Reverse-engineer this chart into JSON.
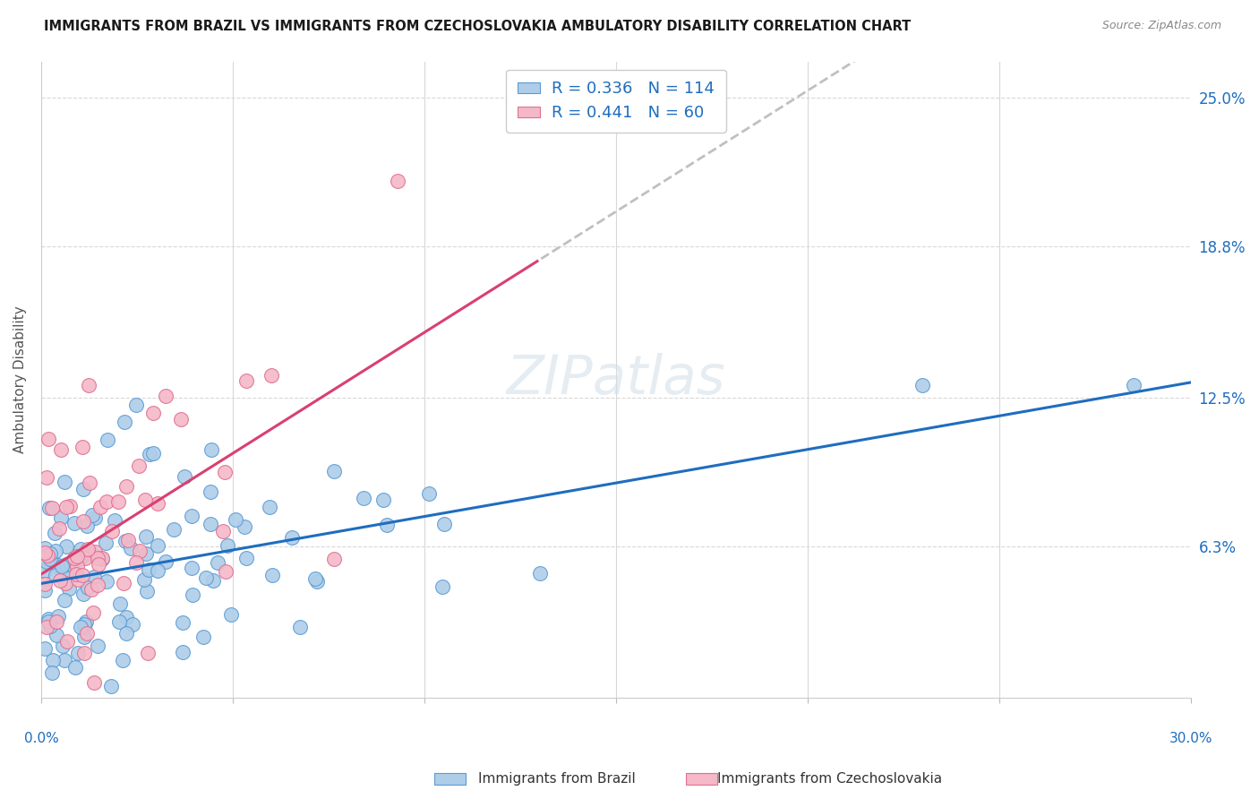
{
  "title": "IMMIGRANTS FROM BRAZIL VS IMMIGRANTS FROM CZECHOSLOVAKIA AMBULATORY DISABILITY CORRELATION CHART",
  "source": "Source: ZipAtlas.com",
  "xlabel_brazil": "Immigrants from Brazil",
  "xlabel_czech": "Immigrants from Czechoslovakia",
  "ylabel": "Ambulatory Disability",
  "xmin": 0.0,
  "xmax": 0.3,
  "ymin": 0.0,
  "ymax": 0.265,
  "brazil_R": 0.336,
  "brazil_N": 114,
  "czech_R": 0.441,
  "czech_N": 60,
  "brazil_color": "#aecde8",
  "czech_color": "#f4b8c8",
  "brazil_edge_color": "#5b9bd5",
  "czech_edge_color": "#e07090",
  "trend_blue": "#1f6dbf",
  "trend_pink": "#d94070",
  "trend_dash_color": "#c0c0c0",
  "legend_text_color": "#1f6dbf",
  "watermark": "ZIPatlas",
  "background_color": "#ffffff",
  "grid_color": "#d8d8d8",
  "title_color": "#1a1a1a",
  "source_color": "#888888",
  "axis_label_color": "#555555",
  "tick_color": "#1f6dbf"
}
